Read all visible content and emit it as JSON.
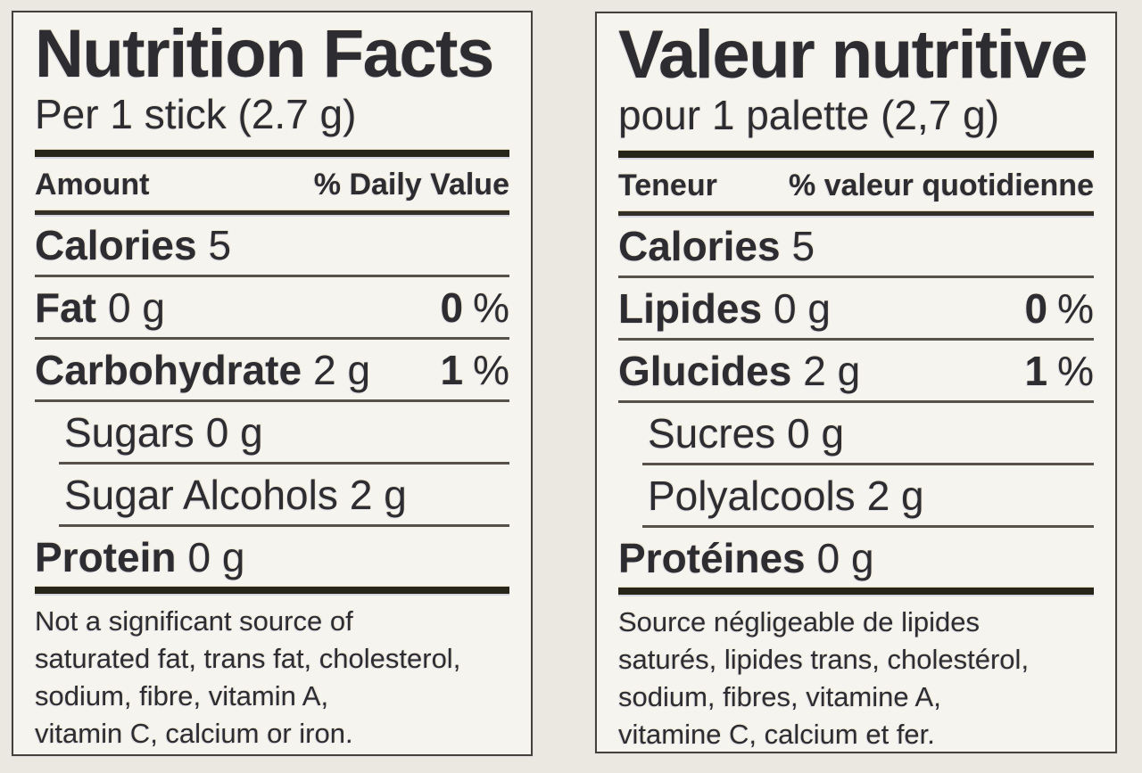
{
  "colors": {
    "page_bg": "#ebe8e1",
    "panel_bg": "#f6f4ee",
    "border": "#45413a",
    "ink": "#2d2c30",
    "bar": "#272419",
    "bar_med": "#332f26",
    "separator": "#57514a"
  },
  "panels": [
    {
      "lang": "english",
      "title": "Nutrition Facts",
      "serving": "Per 1 stick (2.7 g)",
      "amount_header": "Amount",
      "dv_header": "% Daily Value",
      "rows": [
        {
          "label": "Calories",
          "amount": "5",
          "pct": null,
          "bold": true,
          "indent": false,
          "sep": "none"
        },
        {
          "label": "Fat",
          "amount": "0 g",
          "pct": "0",
          "pct_unit": "%",
          "bold": true,
          "indent": false,
          "sep": "full"
        },
        {
          "label": "Carbohydrate",
          "amount": "2 g",
          "pct": "1",
          "pct_unit": "%",
          "bold": true,
          "indent": false,
          "sep": "full"
        },
        {
          "label": "Sugars",
          "amount": "0 g",
          "pct": null,
          "bold": false,
          "indent": true,
          "sep": "full"
        },
        {
          "label": "Sugar Alcohols",
          "amount": "2 g",
          "pct": null,
          "bold": false,
          "indent": true,
          "sep": "indent"
        },
        {
          "label": "Protein",
          "amount": "0 g",
          "pct": null,
          "bold": true,
          "indent": false,
          "sep": "indent"
        }
      ],
      "footnote_lines": [
        "Not a significant source of",
        "saturated fat, trans fat, cholesterol,",
        "sodium, fibre, vitamin A,",
        "vitamin C, calcium or iron."
      ]
    },
    {
      "lang": "french",
      "title": "Valeur nutritive",
      "serving": "pour 1 palette (2,7 g)",
      "amount_header": "Teneur",
      "dv_header": "% valeur quotidienne",
      "rows": [
        {
          "label": "Calories",
          "amount": "5",
          "pct": null,
          "bold": true,
          "indent": false,
          "sep": "none"
        },
        {
          "label": "Lipides",
          "amount": "0 g",
          "pct": "0",
          "pct_unit": "%",
          "bold": true,
          "indent": false,
          "sep": "full"
        },
        {
          "label": "Glucides",
          "amount": "2 g",
          "pct": "1",
          "pct_unit": "%",
          "bold": true,
          "indent": false,
          "sep": "full"
        },
        {
          "label": "Sucres",
          "amount": "0 g",
          "pct": null,
          "bold": false,
          "indent": true,
          "sep": "full"
        },
        {
          "label": "Polyalcools",
          "amount": "2 g",
          "pct": null,
          "bold": false,
          "indent": true,
          "sep": "indent"
        },
        {
          "label": "Protéines",
          "amount": "0 g",
          "pct": null,
          "bold": true,
          "indent": false,
          "sep": "indent"
        }
      ],
      "footnote_lines": [
        "Source négligeable de lipides",
        "saturés, lipides trans, cholestérol,",
        "sodium, fibres, vitamine A,",
        "vitamine C, calcium et fer."
      ]
    }
  ]
}
